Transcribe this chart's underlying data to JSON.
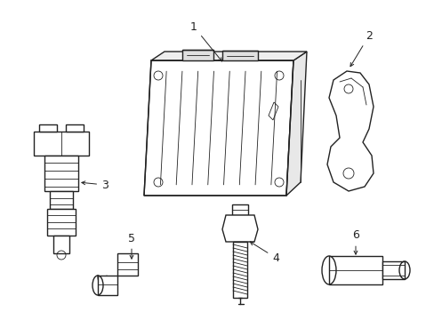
{
  "background_color": "#ffffff",
  "line_color": "#222222",
  "lw": 1.0,
  "tlw": 0.6,
  "fig_width": 4.89,
  "fig_height": 3.6,
  "dpi": 100,
  "font_size": 9,
  "arrow_mutation_scale": 7
}
